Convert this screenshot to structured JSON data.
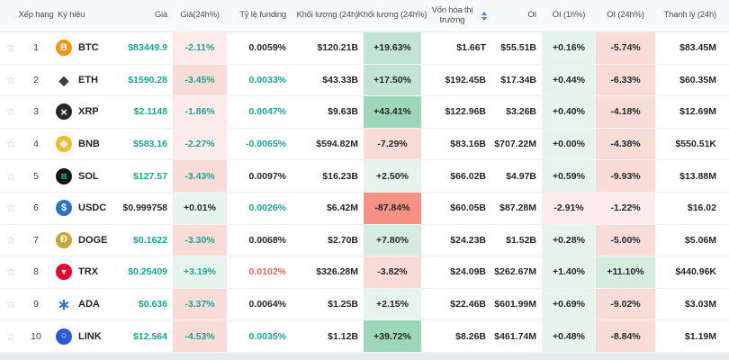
{
  "colors": {
    "text_green": "#18a594",
    "text_red": "#f8645c",
    "text_dark": "#24272b",
    "header_text": "#474d57",
    "sort_blue": "#4a7df0",
    "heat_strong_green": "#9ed6ba",
    "heat_green": "#c3e4d3",
    "heat_light_green": "#d6ecdf",
    "heat_faint_green": "#e7f3ed",
    "heat_faint_red": "#fcebe9",
    "heat_light_red": "#f9dcd8",
    "heat_red": "#f6c9c2",
    "heat_strong_red": "#f79183"
  },
  "table": {
    "headers": [
      "",
      "Xếp hạng",
      "Ký hiệu",
      "Giá",
      "Giá(24h%)",
      "Tỷ lệ funding",
      "Khối lượng (24h)",
      "Khối lượng (24h%)",
      "Vốn hóa thị trường",
      "OI",
      "OI (1h%)",
      "OI (24h%)",
      "Thanh lý (24h)"
    ],
    "star_glyph": "☆",
    "rows": [
      {
        "rank": "1",
        "symbol": "BTC",
        "icon": {
          "bg": "#f7931a",
          "fg": "#ffffff",
          "glyph": "B",
          "size": 11
        },
        "price": "$83449.9",
        "price_c": "green",
        "chg24h": "-2.11%",
        "chg_c": "green",
        "funding": "0.0059%",
        "funding_c": "dark",
        "vol24h": "$120.21B",
        "vol24hPct": "+19.63%",
        "mcap": "$1.66T",
        "oi": "$55.51B",
        "oi1h": "+0.16%",
        "oi24h": "-5.74%",
        "liq": "$83.45M"
      },
      {
        "rank": "2",
        "symbol": "ETH",
        "icon": {
          "bg": "#ffffff",
          "fg": "#3b3d4a",
          "glyph": "◆",
          "size": 14
        },
        "price": "$1590.28",
        "price_c": "green",
        "chg24h": "-3.45%",
        "chg_c": "green",
        "funding": "0.0033%",
        "funding_c": "green",
        "vol24h": "$43.33B",
        "vol24hPct": "+17.50%",
        "mcap": "$192.45B",
        "oi": "$17.34B",
        "oi1h": "+0.44%",
        "oi24h": "-6.33%",
        "liq": "$60.35M"
      },
      {
        "rank": "3",
        "symbol": "XRP",
        "icon": {
          "bg": "#23292f",
          "fg": "#ffffff",
          "glyph": "×",
          "size": 13
        },
        "price": "$2.1148",
        "price_c": "green",
        "chg24h": "-1.86%",
        "chg_c": "green",
        "funding": "0.0047%",
        "funding_c": "green",
        "vol24h": "$9.63B",
        "vol24hPct": "+43.41%",
        "mcap": "$122.96B",
        "oi": "$3.26B",
        "oi1h": "+0.40%",
        "oi24h": "-4.18%",
        "liq": "$12.69M"
      },
      {
        "rank": "4",
        "symbol": "BNB",
        "icon": {
          "bg": "#f3ba2f",
          "fg": "#ffffff",
          "glyph": "◆",
          "size": 11
        },
        "price": "$583.16",
        "price_c": "green",
        "chg24h": "-2.27%",
        "chg_c": "green",
        "funding": "-0.0065%",
        "funding_c": "green",
        "vol24h": "$594.82M",
        "vol24hPct": "-7.29%",
        "mcap": "$83.16B",
        "oi": "$707.22M",
        "oi1h": "+0.00%",
        "oi24h": "-4.38%",
        "liq": "$550.51K"
      },
      {
        "rank": "5",
        "symbol": "SOL",
        "icon": {
          "bg": "#131313",
          "fg": "#19fb9b",
          "glyph": "≡",
          "size": 13
        },
        "price": "$127.57",
        "price_c": "green",
        "chg24h": "-3.43%",
        "chg_c": "green",
        "funding": "0.0097%",
        "funding_c": "dark",
        "vol24h": "$16.23B",
        "vol24hPct": "+2.50%",
        "mcap": "$66.02B",
        "oi": "$4.97B",
        "oi1h": "+0.59%",
        "oi24h": "-9.93%",
        "liq": "$13.88M"
      },
      {
        "rank": "6",
        "symbol": "USDC",
        "icon": {
          "bg": "#2775ca",
          "fg": "#ffffff",
          "glyph": "$",
          "size": 11
        },
        "price": "$0.999758",
        "price_c": "dark",
        "chg24h": "+0.01%",
        "chg_c": "dark",
        "funding": "0.0026%",
        "funding_c": "green",
        "vol24h": "$6.42M",
        "vol24hPct": "-87.84%",
        "mcap": "$60.05B",
        "oi": "$87.28M",
        "oi1h": "-2.91%",
        "oi24h": "-1.22%",
        "liq": "$16.02"
      },
      {
        "rank": "7",
        "symbol": "DOGE",
        "icon": {
          "bg": "#c9a634",
          "fg": "#ffffff",
          "glyph": "Ð",
          "size": 11
        },
        "price": "$0.1622",
        "price_c": "green",
        "chg24h": "-3.30%",
        "chg_c": "green",
        "funding": "0.0068%",
        "funding_c": "dark",
        "vol24h": "$2.70B",
        "vol24hPct": "+7.80%",
        "mcap": "$24.23B",
        "oi": "$1.52B",
        "oi1h": "+0.28%",
        "oi24h": "-5.00%",
        "liq": "$5.06M"
      },
      {
        "rank": "8",
        "symbol": "TRX",
        "icon": {
          "bg": "#eb0029",
          "fg": "#ffffff",
          "glyph": "▼",
          "size": 9
        },
        "price": "$0.25409",
        "price_c": "green",
        "chg24h": "+3.19%",
        "chg_c": "green",
        "funding": "0.0102%",
        "funding_c": "red",
        "vol24h": "$326.28M",
        "vol24hPct": "-3.82%",
        "mcap": "$24.09B",
        "oi": "$262.67M",
        "oi1h": "+1.40%",
        "oi24h": "+11.10%",
        "liq": "$440.96K"
      },
      {
        "rank": "9",
        "symbol": "ADA",
        "icon": {
          "bg": "#ffffff",
          "fg": "#2a71d0",
          "glyph": "∗",
          "size": 17
        },
        "price": "$0.636",
        "price_c": "green",
        "chg24h": "-3.37%",
        "chg_c": "green",
        "funding": "0.0064%",
        "funding_c": "dark",
        "vol24h": "$1.25B",
        "vol24hPct": "+2.15%",
        "mcap": "$22.46B",
        "oi": "$601.99M",
        "oi1h": "+0.69%",
        "oi24h": "-9.02%",
        "liq": "$3.03M"
      },
      {
        "rank": "10",
        "symbol": "LINK",
        "icon": {
          "bg": "#2a5ada",
          "fg": "#ffffff",
          "glyph": "○",
          "size": 11
        },
        "price": "$12.564",
        "price_c": "green",
        "chg24h": "-4.53%",
        "chg_c": "green",
        "funding": "0.0035%",
        "funding_c": "green",
        "vol24h": "$1.12B",
        "vol24hPct": "+39.72%",
        "mcap": "$8.26B",
        "oi": "$461.74M",
        "oi1h": "+0.48%",
        "oi24h": "-8.84%",
        "liq": "$1.19M"
      }
    ]
  }
}
